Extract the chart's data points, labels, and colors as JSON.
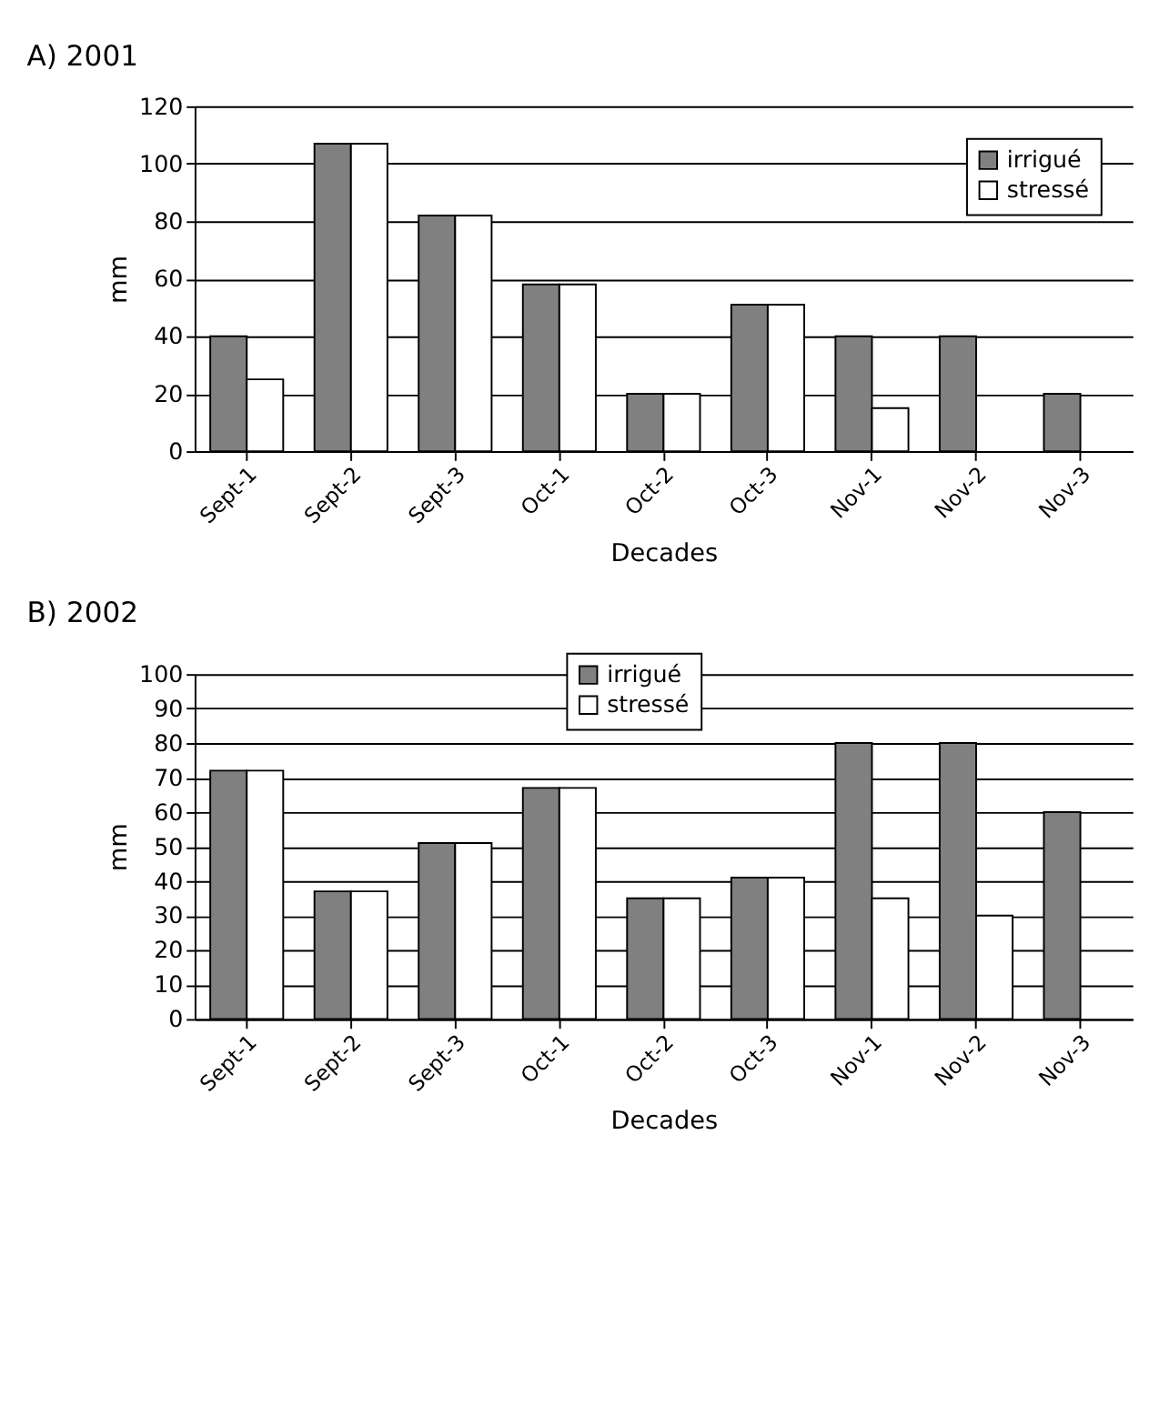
{
  "chart_data": [
    {
      "type": "bar",
      "title": "A) 2001",
      "xlabel": "Decades",
      "ylabel": "mm",
      "categories": [
        "Sept-1",
        "Sept-2",
        "Sept-3",
        "Oct-1",
        "Oct-2",
        "Oct-3",
        "Nov-1",
        "Nov-2",
        "Nov-3"
      ],
      "series": [
        {
          "name": "irrigué",
          "color": "#808080",
          "values": [
            40,
            107,
            82,
            58,
            20,
            51,
            40,
            40,
            20
          ]
        },
        {
          "name": "stressé",
          "color": "#ffffff",
          "values": [
            25,
            107,
            82,
            58,
            20,
            51,
            15,
            null,
            null
          ]
        }
      ],
      "ylim": [
        0,
        120
      ],
      "yticks": [
        0,
        20,
        40,
        60,
        80,
        100,
        120
      ],
      "grid": "y",
      "legend": "top right"
    },
    {
      "type": "bar",
      "title": "B) 2002",
      "xlabel": "Decades",
      "ylabel": "mm",
      "categories": [
        "Sept-1",
        "Sept-2",
        "Sept-3",
        "Oct-1",
        "Oct-2",
        "Oct-3",
        "Nov-1",
        "Nov-2",
        "Nov-3"
      ],
      "series": [
        {
          "name": "irrigué",
          "color": "#808080",
          "values": [
            72,
            37,
            51,
            67,
            35,
            41,
            80,
            80,
            60
          ]
        },
        {
          "name": "stressé",
          "color": "#ffffff",
          "values": [
            72,
            37,
            51,
            67,
            35,
            41,
            35,
            30,
            null
          ]
        }
      ],
      "ylim": [
        0,
        100
      ],
      "yticks": [
        0,
        10,
        20,
        30,
        40,
        50,
        60,
        70,
        80,
        90,
        100
      ],
      "grid": "y",
      "legend": "top"
    }
  ]
}
